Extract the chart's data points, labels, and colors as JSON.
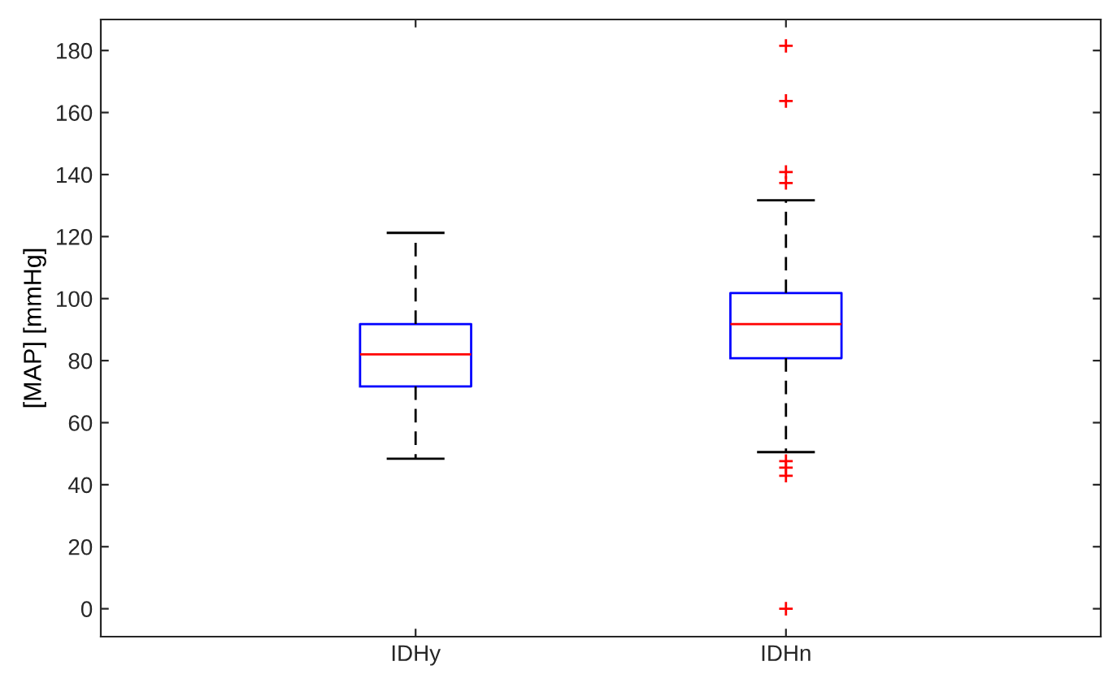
{
  "chart_data": {
    "type": "box",
    "ylabel": "[MAP] [mmHg]",
    "categories": [
      "IDHy",
      "IDHn"
    ],
    "boxes": [
      {
        "low": 48.4,
        "q1": 71.7,
        "median": 82,
        "q3": 91.8,
        "high": 121.2
      },
      {
        "low": 50.5,
        "q1": 80.8,
        "median": 91.8,
        "q3": 101.8,
        "high": 131.7,
        "outliers": [
          181.5,
          163.7,
          140.8,
          137.3,
          47.6,
          45.5,
          42.9,
          0
        ]
      }
    ],
    "color": "#0000ff",
    "ylim": [
      -9,
      190
    ],
    "yticks": [
      0,
      20,
      40,
      60,
      80,
      100,
      120,
      140,
      160,
      180
    ],
    "grid": false,
    "marker": "cross"
  }
}
